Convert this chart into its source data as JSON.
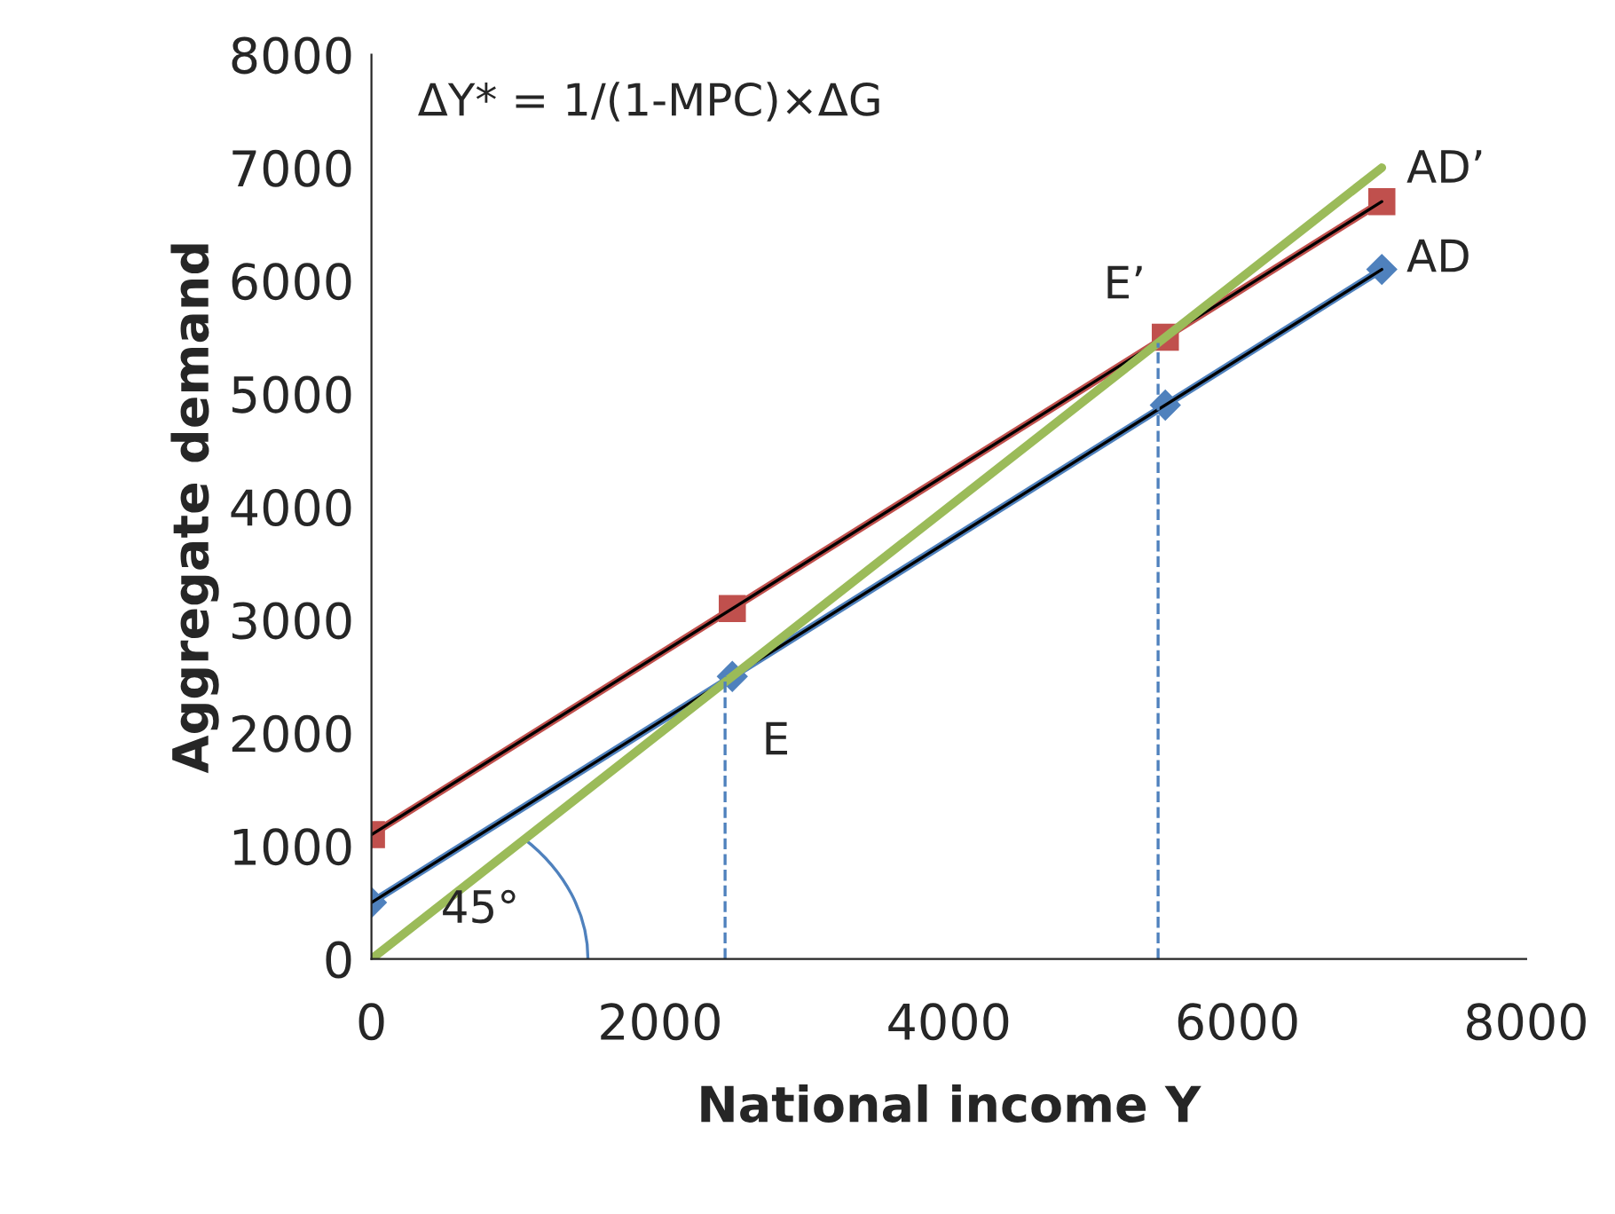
{
  "chart_data": {
    "type": "line",
    "xlabel": "National income Y",
    "ylabel": "Aggregate demand",
    "xlim": [
      0,
      8000
    ],
    "ylim": [
      0,
      8000
    ],
    "xticks": [
      0,
      2000,
      4000,
      6000,
      8000
    ],
    "yticks": [
      0,
      1000,
      2000,
      3000,
      4000,
      5000,
      6000,
      7000,
      8000
    ],
    "grid": false,
    "legend": false,
    "series": [
      {
        "name": "AD",
        "color": "#4f81bd",
        "x": [
          0,
          2500,
          5500,
          7000
        ],
        "values": [
          500,
          2500,
          4900,
          6100
        ],
        "marker": "diamond"
      },
      {
        "color": "#000000",
        "x": [
          0,
          7000
        ],
        "values": [
          500,
          6100
        ],
        "marker": "none"
      },
      {
        "name": "AD’",
        "color": "#c0504d",
        "x": [
          0,
          2500,
          5500,
          7000
        ],
        "values": [
          1100,
          3100,
          5500,
          6700
        ],
        "marker": "square"
      },
      {
        "color": "#000000",
        "x": [
          0,
          7000
        ],
        "values": [
          1100,
          6700
        ],
        "marker": "none"
      },
      {
        "color": "#9bbb59",
        "x": [
          0,
          7000
        ],
        "values": [
          0,
          7000
        ],
        "marker": "none"
      },
      {
        "color": "#4f81bd",
        "x": [
          2450,
          2450
        ],
        "values": [
          0,
          2500
        ],
        "marker": "none",
        "line_style": "dashed"
      },
      {
        "color": "#4f81bd",
        "x": [
          5450,
          5450
        ],
        "values": [
          0,
          5450
        ],
        "marker": "none",
        "line_style": "dashed"
      }
    ],
    "annotations": [
      "ΔY* = 1/(1-MPC)×ΔG",
      {
        "text": "E",
        "x": 2500,
        "y": 2500
      },
      {
        "text": "E’",
        "x": 5500,
        "y": 5500
      },
      "45°"
    ]
  }
}
